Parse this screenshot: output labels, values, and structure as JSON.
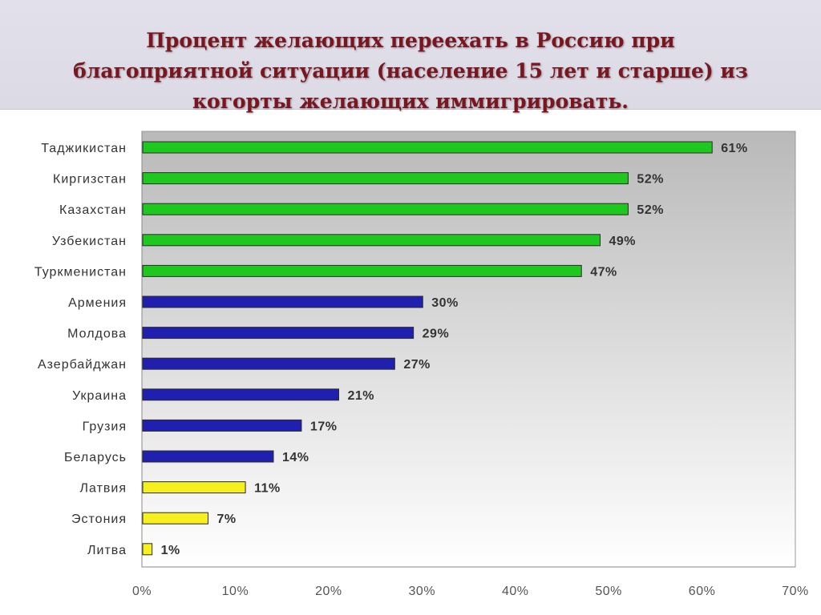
{
  "page": {
    "title_line1": "Процент желающих переехать в Россию при",
    "title_line2": "благоприятной ситуации (население 15 лет и старше) из",
    "title_line3": "когорты желающих иммигрировать."
  },
  "chart_data": {
    "type": "bar",
    "orientation": "horizontal",
    "title": "",
    "xlabel": "",
    "ylabel": "",
    "xlim": [
      0,
      70
    ],
    "x_ticks": [
      "0%",
      "10%",
      "20%",
      "30%",
      "40%",
      "50%",
      "60%",
      "70%"
    ],
    "grid": false,
    "legend": "none",
    "categories": [
      "Таджикистан",
      "Киргизстан",
      "Казахстан",
      "Узбекистан",
      "Туркменистан",
      "Армения",
      "Молдова",
      "Азербайджан",
      "Украина",
      "Грузия",
      "Беларусь",
      "Латвия",
      "Эстония",
      "Литва"
    ],
    "values": [
      61,
      52,
      52,
      49,
      47,
      30,
      29,
      27,
      21,
      17,
      14,
      11,
      7,
      1
    ],
    "value_labels": [
      "61%",
      "52%",
      "52%",
      "49%",
      "47%",
      "30%",
      "29%",
      "27%",
      "21%",
      "17%",
      "14%",
      "11%",
      "7%",
      "1%"
    ],
    "bar_colors": [
      "#1ec81e",
      "#1ec81e",
      "#1ec81e",
      "#1ec81e",
      "#1ec81e",
      "#1f1fb0",
      "#1f1fb0",
      "#1f1fb0",
      "#1f1fb0",
      "#1f1fb0",
      "#1f1fb0",
      "#f5f01e",
      "#f5f01e",
      "#f5f01e"
    ]
  }
}
